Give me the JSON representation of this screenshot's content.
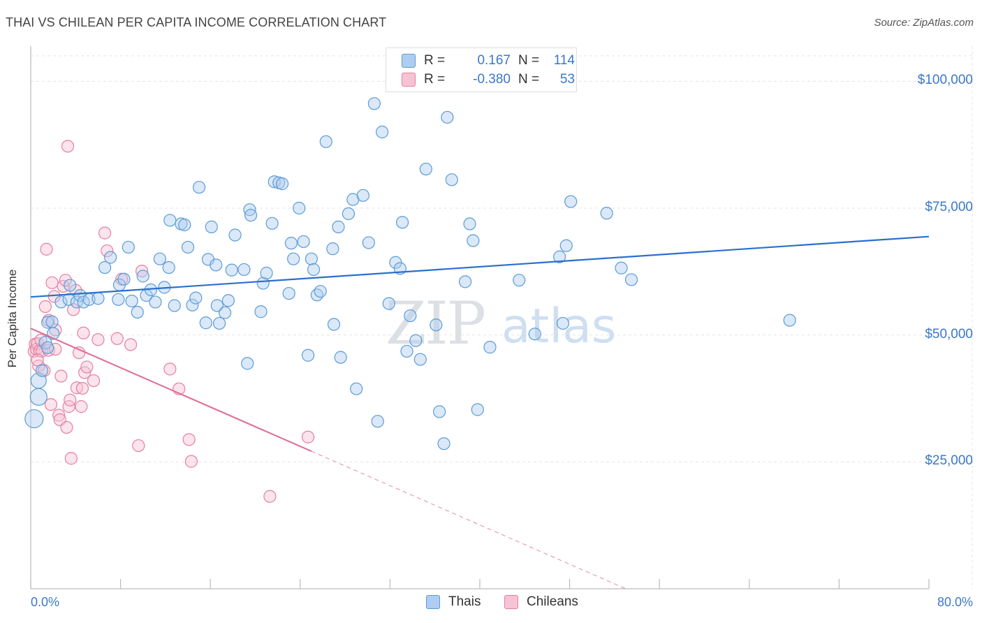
{
  "header": {
    "title": "THAI VS CHILEAN PER CAPITA INCOME CORRELATION CHART",
    "source": "Source: ZipAtlas.com"
  },
  "watermark": {
    "zip": "ZIP",
    "atlas": "atlas"
  },
  "colors": {
    "blue": "#5b9bd5",
    "blue_line": "#2a6fcf",
    "blue_fill": "#aecdf0",
    "pink": "#e57ea1",
    "pink_line": "#e06a93",
    "pink_fill": "#f6c3d4",
    "tick_text": "#3a78c9"
  },
  "legend": {
    "rows": [
      {
        "r_label": "R =",
        "r_value": "0.167",
        "n_label": "N =",
        "n_value": "114"
      },
      {
        "r_label": "R =",
        "r_value": "-0.380",
        "n_label": "N =",
        "n_value": "53"
      }
    ]
  },
  "bottom_legend": {
    "items": [
      "Thais",
      "Chileans"
    ]
  },
  "chart_data": {
    "type": "scatter",
    "xlabel": "",
    "ylabel": "Per Capita Income",
    "xlim": [
      0,
      80
    ],
    "ylim": [
      0,
      105000
    ],
    "x_tick_labels": [
      "0.0%",
      "80.0%"
    ],
    "y_ticks": [
      25000,
      50000,
      75000,
      100000
    ],
    "y_tick_labels": [
      "$25,000",
      "$50,000",
      "$75,000",
      "$100,000"
    ],
    "grid": true,
    "legend_position": "top-center",
    "series": [
      {
        "name": "Thais",
        "color": "#5b9bd5",
        "trend": {
          "x": [
            0,
            80
          ],
          "y": [
            57500,
            69400
          ]
        },
        "points": [
          [
            0.3,
            33500
          ],
          [
            0.7,
            37800
          ],
          [
            0.7,
            41000
          ],
          [
            1.0,
            43000
          ],
          [
            1.3,
            48500
          ],
          [
            1.5,
            47500
          ],
          [
            1.5,
            52500
          ],
          [
            1.9,
            52600
          ],
          [
            2.0,
            50300
          ],
          [
            2.7,
            56500
          ],
          [
            3.4,
            57000
          ],
          [
            3.5,
            59800
          ],
          [
            4.1,
            56500
          ],
          [
            4.4,
            57800
          ],
          [
            4.7,
            56500
          ],
          [
            5.2,
            57000
          ],
          [
            6.0,
            57200
          ],
          [
            6.6,
            63300
          ],
          [
            7.1,
            65300
          ],
          [
            7.8,
            57000
          ],
          [
            7.9,
            59900
          ],
          [
            8.3,
            61000
          ],
          [
            8.7,
            67300
          ],
          [
            9.0,
            56700
          ],
          [
            9.5,
            54500
          ],
          [
            10.0,
            61600
          ],
          [
            10.3,
            57800
          ],
          [
            10.7,
            58900
          ],
          [
            11.1,
            56500
          ],
          [
            11.5,
            65000
          ],
          [
            11.9,
            59400
          ],
          [
            12.3,
            63300
          ],
          [
            12.4,
            72600
          ],
          [
            12.8,
            55800
          ],
          [
            13.4,
            71900
          ],
          [
            13.7,
            71700
          ],
          [
            14.0,
            67300
          ],
          [
            14.4,
            55900
          ],
          [
            14.7,
            57300
          ],
          [
            15.0,
            79100
          ],
          [
            15.6,
            52400
          ],
          [
            15.8,
            64900
          ],
          [
            16.1,
            71300
          ],
          [
            16.5,
            63800
          ],
          [
            16.6,
            55800
          ],
          [
            16.8,
            52300
          ],
          [
            17.3,
            54400
          ],
          [
            17.6,
            56800
          ],
          [
            17.9,
            62800
          ],
          [
            18.2,
            69700
          ],
          [
            19.0,
            62900
          ],
          [
            19.3,
            44400
          ],
          [
            19.5,
            74700
          ],
          [
            19.6,
            73600
          ],
          [
            20.5,
            54600
          ],
          [
            20.7,
            60200
          ],
          [
            21.0,
            62200
          ],
          [
            21.5,
            72000
          ],
          [
            21.7,
            80200
          ],
          [
            22.1,
            80000
          ],
          [
            22.4,
            79800
          ],
          [
            23.0,
            58200
          ],
          [
            23.2,
            68100
          ],
          [
            23.4,
            65000
          ],
          [
            23.9,
            75000
          ],
          [
            24.3,
            68400
          ],
          [
            24.7,
            46000
          ],
          [
            25.0,
            65000
          ],
          [
            25.2,
            62900
          ],
          [
            25.5,
            57900
          ],
          [
            25.8,
            58600
          ],
          [
            26.3,
            88100
          ],
          [
            26.9,
            67000
          ],
          [
            27.0,
            52100
          ],
          [
            27.4,
            71300
          ],
          [
            27.6,
            45600
          ],
          [
            28.3,
            73900
          ],
          [
            28.7,
            76700
          ],
          [
            29.0,
            39400
          ],
          [
            29.6,
            77500
          ],
          [
            30.1,
            68200
          ],
          [
            30.6,
            95600
          ],
          [
            30.9,
            33000
          ],
          [
            31.3,
            90000
          ],
          [
            31.9,
            56200
          ],
          [
            32.5,
            64300
          ],
          [
            32.9,
            63100
          ],
          [
            33.1,
            72200
          ],
          [
            33.5,
            46800
          ],
          [
            33.8,
            53800
          ],
          [
            34.3,
            48900
          ],
          [
            34.7,
            45200
          ],
          [
            35.2,
            82700
          ],
          [
            36.1,
            52000
          ],
          [
            36.4,
            34900
          ],
          [
            36.8,
            28600
          ],
          [
            37.1,
            92900
          ],
          [
            37.5,
            80600
          ],
          [
            38.7,
            60500
          ],
          [
            39.1,
            71900
          ],
          [
            39.4,
            68600
          ],
          [
            39.8,
            35300
          ],
          [
            40.9,
            47600
          ],
          [
            43.5,
            60800
          ],
          [
            44.9,
            50200
          ],
          [
            47.1,
            65400
          ],
          [
            47.4,
            52300
          ],
          [
            47.7,
            67600
          ],
          [
            48.1,
            76300
          ],
          [
            51.3,
            74000
          ],
          [
            52.6,
            63200
          ],
          [
            53.5,
            60900
          ],
          [
            67.6,
            52900
          ]
        ]
      },
      {
        "name": "Chileans",
        "color": "#e57ea1",
        "trend": {
          "x": [
            0,
            25
          ],
          "y": [
            51300,
            27100
          ]
        },
        "trend_dashed": {
          "x": [
            25,
            53
          ],
          "y": [
            27100,
            0
          ]
        },
        "points": [
          [
            0.3,
            46800
          ],
          [
            0.4,
            48200
          ],
          [
            0.5,
            47200
          ],
          [
            0.6,
            48300
          ],
          [
            0.7,
            43900
          ],
          [
            0.8,
            46900
          ],
          [
            0.9,
            49000
          ],
          [
            1.0,
            46800
          ],
          [
            1.2,
            43000
          ],
          [
            1.3,
            55600
          ],
          [
            1.4,
            66900
          ],
          [
            1.6,
            52900
          ],
          [
            1.8,
            36300
          ],
          [
            1.9,
            60300
          ],
          [
            2.1,
            57600
          ],
          [
            2.2,
            51000
          ],
          [
            2.5,
            34200
          ],
          [
            2.6,
            33300
          ],
          [
            2.7,
            41900
          ],
          [
            2.9,
            59600
          ],
          [
            3.1,
            60800
          ],
          [
            3.2,
            31800
          ],
          [
            3.3,
            87200
          ],
          [
            3.4,
            35900
          ],
          [
            3.5,
            37200
          ],
          [
            3.6,
            25700
          ],
          [
            3.8,
            55000
          ],
          [
            4.0,
            58800
          ],
          [
            4.1,
            39600
          ],
          [
            4.3,
            46500
          ],
          [
            4.5,
            35900
          ],
          [
            4.6,
            39500
          ],
          [
            4.7,
            50400
          ],
          [
            4.8,
            42600
          ],
          [
            5.0,
            43700
          ],
          [
            5.6,
            41000
          ],
          [
            6.0,
            49100
          ],
          [
            6.6,
            70100
          ],
          [
            6.8,
            66600
          ],
          [
            7.7,
            49300
          ],
          [
            8.1,
            61000
          ],
          [
            8.9,
            48100
          ],
          [
            9.6,
            28200
          ],
          [
            9.9,
            62600
          ],
          [
            12.4,
            43300
          ],
          [
            13.2,
            39400
          ],
          [
            14.1,
            29400
          ],
          [
            14.3,
            25100
          ],
          [
            21.3,
            18200
          ],
          [
            24.7,
            29900
          ],
          [
            1.6,
            47000
          ],
          [
            2.2,
            47200
          ],
          [
            0.6,
            45100
          ]
        ]
      }
    ]
  }
}
